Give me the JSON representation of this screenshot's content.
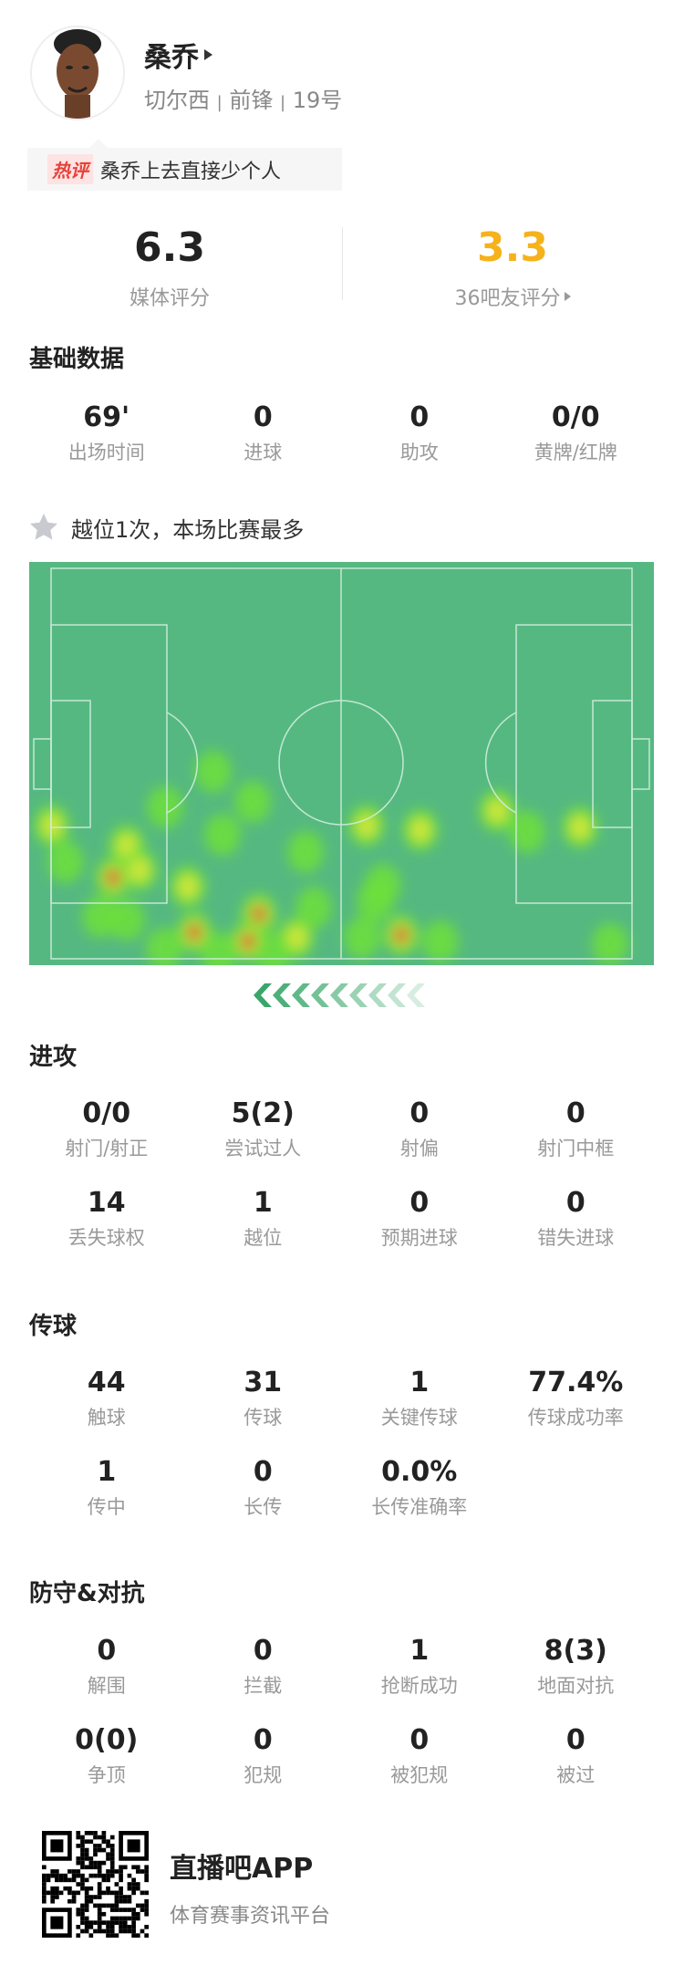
{
  "player": {
    "name": "桑乔",
    "team": "切尔西",
    "position": "前锋",
    "number": "19号",
    "separator": "|"
  },
  "hot_comment": {
    "badge": "热评",
    "text": "桑乔上去直接少个人"
  },
  "ratings": {
    "media": {
      "value": "6.3",
      "label": "媒体评分"
    },
    "fans": {
      "value": "3.3",
      "label": "36吧友评分",
      "color": "#f5b21b"
    }
  },
  "basic": {
    "title": "基础数据",
    "stats": [
      {
        "value": "69'",
        "label": "出场时间"
      },
      {
        "value": "0",
        "label": "进球"
      },
      {
        "value": "0",
        "label": "助攻"
      },
      {
        "value": "0/0",
        "label": "黄牌/红牌"
      }
    ]
  },
  "highlight": {
    "icon": "star-icon",
    "text": "越位1次，本场比赛最多"
  },
  "heatmap": {
    "pitch_color": "#55b881",
    "line_color": "#cfeedd",
    "direction": "attacking-left"
  },
  "attack": {
    "title": "进攻",
    "stats": [
      {
        "value": "0/0",
        "label": "射门/射正"
      },
      {
        "value": "5(2)",
        "label": "尝试过人"
      },
      {
        "value": "0",
        "label": "射偏"
      },
      {
        "value": "0",
        "label": "射门中框"
      },
      {
        "value": "14",
        "label": "丢失球权"
      },
      {
        "value": "1",
        "label": "越位"
      },
      {
        "value": "0",
        "label": "预期进球"
      },
      {
        "value": "0",
        "label": "错失进球"
      }
    ]
  },
  "passing": {
    "title": "传球",
    "stats": [
      {
        "value": "44",
        "label": "触球"
      },
      {
        "value": "31",
        "label": "传球"
      },
      {
        "value": "1",
        "label": "关键传球"
      },
      {
        "value": "77.4%",
        "label": "传球成功率"
      },
      {
        "value": "1",
        "label": "传中"
      },
      {
        "value": "0",
        "label": "长传"
      },
      {
        "value": "0.0%",
        "label": "长传准确率"
      }
    ]
  },
  "defense": {
    "title": "防守&对抗",
    "stats": [
      {
        "value": "0",
        "label": "解围"
      },
      {
        "value": "0",
        "label": "拦截"
      },
      {
        "value": "1",
        "label": "抢断成功"
      },
      {
        "value": "8(3)",
        "label": "地面对抗"
      },
      {
        "value": "0(0)",
        "label": "争顶"
      },
      {
        "value": "0",
        "label": "犯规"
      },
      {
        "value": "0",
        "label": "被犯规"
      },
      {
        "value": "0",
        "label": "被过"
      }
    ]
  },
  "footer": {
    "app_name": "直播吧APP",
    "tagline": "体育赛事资讯平台"
  }
}
